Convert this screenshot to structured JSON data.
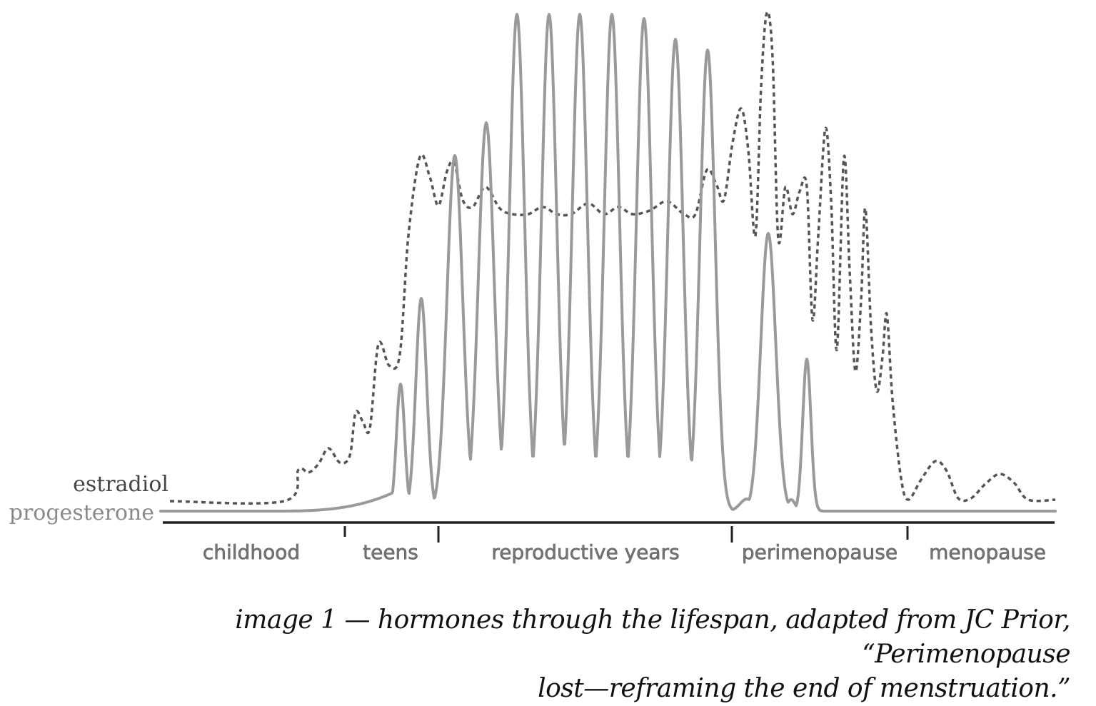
{
  "labels": {
    "estradiol": "estradiol",
    "progesterone": "progesterone"
  },
  "stages": [
    "childhood",
    "teens",
    "reproductive years",
    "perimenopause",
    "menopause"
  ],
  "caption": {
    "line1": "image 1 — hormones through the lifespan, adapted from JC Prior, “Perimenopause",
    "line2": "lost—reframing the end of menstruation.”"
  },
  "colors": {
    "progesterone": "#9a9a9a",
    "estradiol": "#555555",
    "axis": "#222222"
  }
}
